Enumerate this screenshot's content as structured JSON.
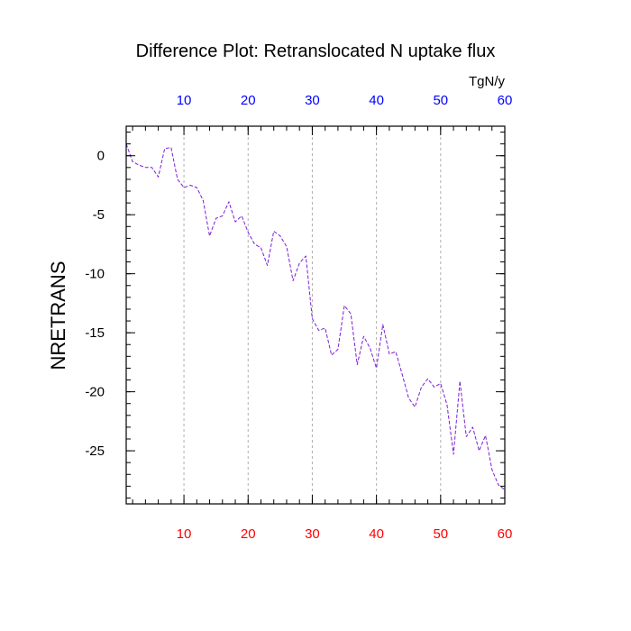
{
  "chart_data": {
    "type": "line",
    "title": "Difference Plot: Retranslocated N uptake flux",
    "units": "TgN/y",
    "ylabel": "NRETRANS",
    "xlabel": "",
    "xlim": [
      1,
      60
    ],
    "ylim": [
      -29.5,
      2.5
    ],
    "x_ticks": [
      10,
      20,
      30,
      40,
      50,
      60
    ],
    "y_ticks": [
      0,
      -5,
      -10,
      -15,
      -20,
      -25
    ],
    "x_minor_step": 2,
    "y_minor_step": 1,
    "grid": "vertical dashed at major x ticks",
    "colors": {
      "line": "#7a1fd6",
      "bottom_tick_labels": "#ff0000",
      "top_tick_labels": "#0000ff",
      "grid": "#b0b0b0",
      "axes": "#000000"
    },
    "series": [
      {
        "x": [
          1,
          2,
          3,
          4,
          5,
          6,
          7,
          8,
          9,
          10,
          11,
          12,
          13,
          14,
          15,
          16,
          17,
          18,
          19,
          20,
          21,
          22,
          23,
          24,
          25,
          26,
          27,
          28,
          29,
          30,
          31,
          32,
          33,
          34,
          35,
          36,
          37,
          38,
          39,
          40,
          41,
          42,
          43,
          44,
          45,
          46,
          47,
          48,
          49,
          50,
          51,
          52,
          53,
          54,
          55,
          56,
          57,
          58,
          59,
          60
        ],
        "values": [
          1.0,
          -0.5,
          -0.8,
          -1.0,
          -1.0,
          -1.8,
          0.6,
          0.7,
          -2.0,
          -2.7,
          -2.5,
          -2.7,
          -3.8,
          -6.8,
          -5.3,
          -5.1,
          -3.9,
          -5.6,
          -5.1,
          -6.5,
          -7.5,
          -7.8,
          -9.3,
          -6.4,
          -6.8,
          -7.7,
          -10.6,
          -9.1,
          -8.5,
          -13.8,
          -14.8,
          -14.6,
          -16.9,
          -16.4,
          -12.7,
          -13.4,
          -17.7,
          -15.3,
          -16.3,
          -18.0,
          -14.3,
          -16.8,
          -16.6,
          -18.5,
          -20.5,
          -21.3,
          -19.6,
          -18.9,
          -19.6,
          -19.3,
          -21.1,
          -25.3,
          -19.1,
          -23.8,
          -23.0,
          -25.0,
          -23.7,
          -26.6,
          -27.9,
          -28.3
        ]
      }
    ]
  }
}
